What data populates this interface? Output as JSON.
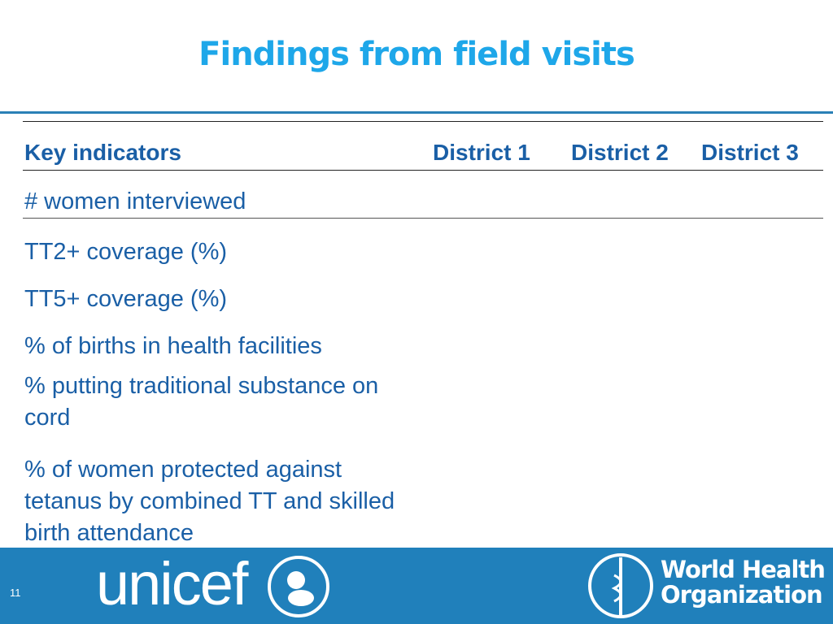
{
  "header": {
    "title": "Findings from field visits"
  },
  "table": {
    "columns": [
      "Key indicators",
      "District 1",
      "District 2",
      "District 3"
    ],
    "rows": [
      "# women interviewed",
      "TT2+ coverage (%)",
      "TT5+ coverage (%)",
      "% of births in health facilities",
      "% putting traditional substance on cord",
      "% of women protected against tetanus by combined TT and skilled birth attendance"
    ]
  },
  "footer": {
    "page_number": "11",
    "unicef": "unicef",
    "who": [
      "World Health",
      "Organization"
    ]
  }
}
